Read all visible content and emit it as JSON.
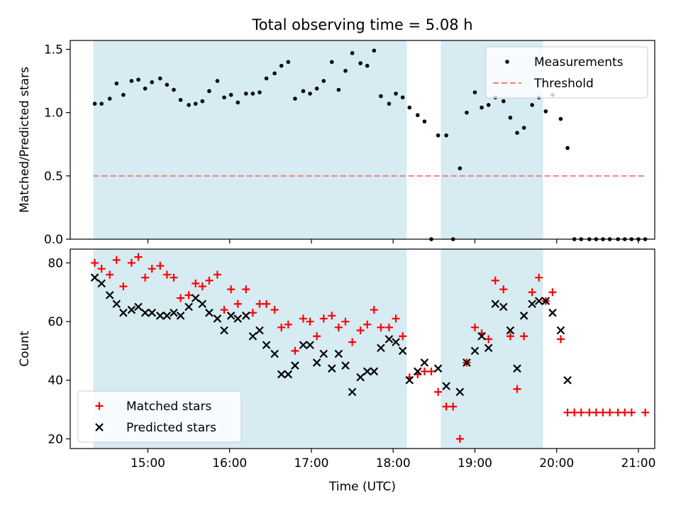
{
  "chart_data": [
    {
      "type": "scatter",
      "title": "Total observing time = 5.08 h",
      "xlabel": "",
      "ylabel": "Matched/Predicted stars",
      "xlim": [
        "14:03",
        "21:12"
      ],
      "ylim": [
        0,
        1.57
      ],
      "x_tick_labels": [],
      "y_ticks": [
        0.0,
        0.5,
        1.0,
        1.5
      ],
      "y_tick_labels": [
        "0.0",
        "0.5",
        "1.0",
        "1.5"
      ],
      "grid": false,
      "legend": "top-right",
      "shaded_intervals": [
        [
          "14:20",
          "18:10"
        ],
        [
          "18:35",
          "19:50"
        ]
      ],
      "series": [
        {
          "name": "Measurements",
          "marker": "dot",
          "color": "#000000",
          "points": [
            [
              "14:21",
              1.07
            ],
            [
              "14:26",
              1.07
            ],
            [
              "14:32",
              1.11
            ],
            [
              "14:37",
              1.23
            ],
            [
              "14:42",
              1.14
            ],
            [
              "14:48",
              1.25
            ],
            [
              "14:53",
              1.26
            ],
            [
              "14:58",
              1.19
            ],
            [
              "15:03",
              1.24
            ],
            [
              "15:09",
              1.27
            ],
            [
              "15:14",
              1.22
            ],
            [
              "15:19",
              1.18
            ],
            [
              "15:24",
              1.1
            ],
            [
              "15:30",
              1.06
            ],
            [
              "15:35",
              1.07
            ],
            [
              "15:40",
              1.09
            ],
            [
              "15:45",
              1.17
            ],
            [
              "15:51",
              1.25
            ],
            [
              "15:56",
              1.12
            ],
            [
              "16:01",
              1.14
            ],
            [
              "16:06",
              1.08
            ],
            [
              "16:12",
              1.15
            ],
            [
              "16:17",
              1.15
            ],
            [
              "16:22",
              1.16
            ],
            [
              "16:27",
              1.27
            ],
            [
              "16:33",
              1.31
            ],
            [
              "16:38",
              1.37
            ],
            [
              "16:43",
              1.4
            ],
            [
              "16:48",
              1.11
            ],
            [
              "16:54",
              1.17
            ],
            [
              "16:59",
              1.15
            ],
            [
              "17:04",
              1.19
            ],
            [
              "17:09",
              1.25
            ],
            [
              "17:15",
              1.4
            ],
            [
              "17:20",
              1.18
            ],
            [
              "17:25",
              1.33
            ],
            [
              "17:30",
              1.47
            ],
            [
              "17:36",
              1.39
            ],
            [
              "17:41",
              1.37
            ],
            [
              "17:46",
              1.49
            ],
            [
              "17:51",
              1.13
            ],
            [
              "17:57",
              1.07
            ],
            [
              "18:02",
              1.15
            ],
            [
              "18:07",
              1.12
            ],
            [
              "18:12",
              1.04
            ],
            [
              "18:18",
              0.98
            ],
            [
              "18:23",
              0.93
            ],
            [
              "18:28",
              0.0
            ],
            [
              "18:33",
              0.82
            ],
            [
              "18:39",
              0.82
            ],
            [
              "18:44",
              0.0
            ],
            [
              "18:49",
              0.56
            ],
            [
              "18:54",
              1.0
            ],
            [
              "19:00",
              1.16
            ],
            [
              "19:05",
              1.04
            ],
            [
              "19:10",
              1.06
            ],
            [
              "19:15",
              1.12
            ],
            [
              "19:21",
              1.09
            ],
            [
              "19:26",
              0.96
            ],
            [
              "19:31",
              0.84
            ],
            [
              "19:36",
              0.88
            ],
            [
              "19:42",
              1.06
            ],
            [
              "19:47",
              1.12
            ],
            [
              "19:52",
              1.01
            ],
            [
              "19:57",
              1.14
            ],
            [
              "20:03",
              0.95
            ],
            [
              "20:08",
              0.72
            ],
            [
              "20:13",
              0.0
            ],
            [
              "20:18",
              0.0
            ],
            [
              "20:24",
              0.0
            ],
            [
              "20:29",
              0.0
            ],
            [
              "20:34",
              0.0
            ],
            [
              "20:39",
              0.0
            ],
            [
              "20:45",
              0.0
            ],
            [
              "20:50",
              0.0
            ],
            [
              "20:55",
              0.0
            ],
            [
              "21:00",
              0.0
            ],
            [
              "21:05",
              0.0
            ]
          ]
        },
        {
          "name": "Threshold",
          "marker": "dashed-line",
          "color": "#f08080",
          "points": [
            [
              "14:20",
              0.5
            ],
            [
              "21:06",
              0.5
            ]
          ]
        }
      ]
    },
    {
      "type": "scatter",
      "title": "",
      "xlabel": "Time (UTC)",
      "ylabel": "Count",
      "xlim": [
        "14:03",
        "21:12"
      ],
      "ylim": [
        16.7,
        84.7
      ],
      "x_tick_labels": [
        "15:00",
        "16:00",
        "17:00",
        "18:00",
        "19:00",
        "20:00",
        "21:00"
      ],
      "y_ticks": [
        20,
        40,
        60,
        80
      ],
      "y_tick_labels": [
        "20",
        "40",
        "60",
        "80"
      ],
      "grid": false,
      "legend": "bottom-left",
      "shaded_intervals": [
        [
          "14:20",
          "18:10"
        ],
        [
          "18:35",
          "19:50"
        ]
      ],
      "series": [
        {
          "name": "Matched stars",
          "marker": "plus",
          "color": "#ff0000",
          "points": [
            [
              "14:21",
              80
            ],
            [
              "14:26",
              78
            ],
            [
              "14:32",
              76
            ],
            [
              "14:37",
              81
            ],
            [
              "14:42",
              72
            ],
            [
              "14:48",
              80
            ],
            [
              "14:53",
              82
            ],
            [
              "14:58",
              75
            ],
            [
              "15:03",
              78
            ],
            [
              "15:09",
              79
            ],
            [
              "15:14",
              76
            ],
            [
              "15:19",
              75
            ],
            [
              "15:24",
              68
            ],
            [
              "15:30",
              69
            ],
            [
              "15:35",
              73
            ],
            [
              "15:40",
              72
            ],
            [
              "15:45",
              74
            ],
            [
              "15:51",
              76
            ],
            [
              "15:56",
              64
            ],
            [
              "16:01",
              71
            ],
            [
              "16:06",
              66
            ],
            [
              "16:12",
              71
            ],
            [
              "16:17",
              63
            ],
            [
              "16:22",
              66
            ],
            [
              "16:27",
              66
            ],
            [
              "16:33",
              64
            ],
            [
              "16:38",
              58
            ],
            [
              "16:43",
              59
            ],
            [
              "16:48",
              50
            ],
            [
              "16:54",
              61
            ],
            [
              "16:59",
              60
            ],
            [
              "17:04",
              55
            ],
            [
              "17:09",
              61
            ],
            [
              "17:15",
              62
            ],
            [
              "17:20",
              58
            ],
            [
              "17:25",
              60
            ],
            [
              "17:30",
              53
            ],
            [
              "17:36",
              57
            ],
            [
              "17:41",
              59
            ],
            [
              "17:46",
              64
            ],
            [
              "17:51",
              58
            ],
            [
              "17:57",
              58
            ],
            [
              "18:02",
              61
            ],
            [
              "18:07",
              55
            ],
            [
              "18:12",
              41
            ],
            [
              "18:18",
              42
            ],
            [
              "18:23",
              43
            ],
            [
              "18:28",
              43
            ],
            [
              "18:33",
              36
            ],
            [
              "18:39",
              31
            ],
            [
              "18:44",
              31
            ],
            [
              "18:49",
              20
            ],
            [
              "18:54",
              46
            ],
            [
              "19:00",
              58
            ],
            [
              "19:05",
              56
            ],
            [
              "19:10",
              54
            ],
            [
              "19:15",
              74
            ],
            [
              "19:21",
              71
            ],
            [
              "19:26",
              55
            ],
            [
              "19:31",
              37
            ],
            [
              "19:36",
              55
            ],
            [
              "19:42",
              70
            ],
            [
              "19:47",
              75
            ],
            [
              "19:52",
              67
            ],
            [
              "19:57",
              70
            ],
            [
              "20:03",
              54
            ],
            [
              "20:08",
              29
            ],
            [
              "20:13",
              29
            ],
            [
              "20:18",
              29
            ],
            [
              "20:24",
              29
            ],
            [
              "20:29",
              29
            ],
            [
              "20:34",
              29
            ],
            [
              "20:39",
              29
            ],
            [
              "20:45",
              29
            ],
            [
              "20:50",
              29
            ],
            [
              "20:55",
              29
            ],
            [
              "21:05",
              29
            ]
          ]
        },
        {
          "name": "Predicted stars",
          "marker": "x",
          "color": "#000000",
          "points": [
            [
              "14:21",
              75
            ],
            [
              "14:26",
              73
            ],
            [
              "14:32",
              69
            ],
            [
              "14:37",
              66
            ],
            [
              "14:42",
              63
            ],
            [
              "14:48",
              64
            ],
            [
              "14:53",
              65
            ],
            [
              "14:58",
              63
            ],
            [
              "15:03",
              63
            ],
            [
              "15:09",
              62
            ],
            [
              "15:14",
              62
            ],
            [
              "15:19",
              63
            ],
            [
              "15:24",
              62
            ],
            [
              "15:30",
              65
            ],
            [
              "15:35",
              68
            ],
            [
              "15:40",
              66
            ],
            [
              "15:45",
              63
            ],
            [
              "15:51",
              61
            ],
            [
              "15:56",
              57
            ],
            [
              "16:01",
              62
            ],
            [
              "16:06",
              61
            ],
            [
              "16:12",
              62
            ],
            [
              "16:17",
              55
            ],
            [
              "16:22",
              57
            ],
            [
              "16:27",
              52
            ],
            [
              "16:33",
              49
            ],
            [
              "16:38",
              42
            ],
            [
              "16:43",
              42
            ],
            [
              "16:48",
              45
            ],
            [
              "16:54",
              52
            ],
            [
              "16:59",
              52
            ],
            [
              "17:04",
              46
            ],
            [
              "17:09",
              49
            ],
            [
              "17:15",
              44
            ],
            [
              "17:20",
              49
            ],
            [
              "17:25",
              45
            ],
            [
              "17:30",
              36
            ],
            [
              "17:36",
              41
            ],
            [
              "17:41",
              43
            ],
            [
              "17:46",
              43
            ],
            [
              "17:51",
              51
            ],
            [
              "17:57",
              54
            ],
            [
              "18:02",
              53
            ],
            [
              "18:07",
              50
            ],
            [
              "18:12",
              40
            ],
            [
              "18:18",
              43
            ],
            [
              "18:23",
              46
            ],
            [
              "18:33",
              44
            ],
            [
              "18:39",
              38
            ],
            [
              "18:49",
              36
            ],
            [
              "18:54",
              46
            ],
            [
              "19:00",
              50
            ],
            [
              "19:05",
              55
            ],
            [
              "19:10",
              51
            ],
            [
              "19:15",
              66
            ],
            [
              "19:21",
              65
            ],
            [
              "19:26",
              57
            ],
            [
              "19:31",
              44
            ],
            [
              "19:36",
              62
            ],
            [
              "19:42",
              66
            ],
            [
              "19:47",
              67
            ],
            [
              "19:52",
              67
            ],
            [
              "19:57",
              63
            ],
            [
              "20:03",
              57
            ],
            [
              "20:08",
              40
            ]
          ]
        }
      ]
    }
  ]
}
